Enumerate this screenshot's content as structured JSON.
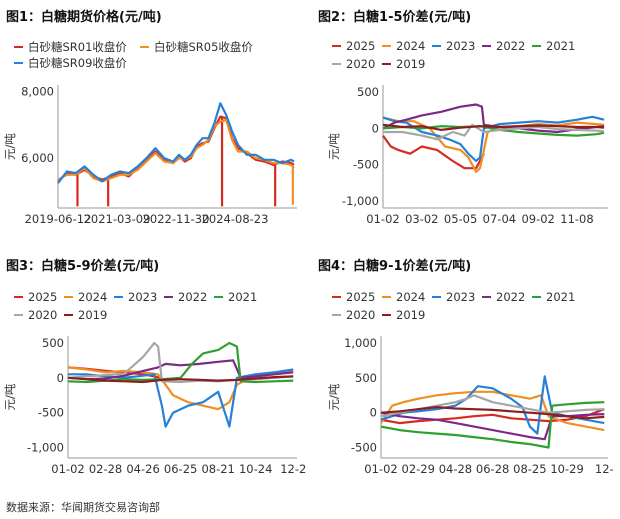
{
  "source": "数据来源：华闻期货交易咨询部",
  "chart_data": [
    {
      "id": "fig1",
      "type": "line",
      "title": "图1：白糖期货价格(元/吨)",
      "ylabel": "元/吨",
      "ylim": [
        4500,
        8200
      ],
      "yticks": [
        6000,
        8000
      ],
      "ytick_labels": [
        "6,000",
        "8,000"
      ],
      "xticks": [
        0,
        1,
        2,
        3,
        4
      ],
      "xtick_labels": [
        "2019-06-12",
        "2021-03-09",
        "2022-11-30",
        "2024-08-23",
        ""
      ],
      "xlim": [
        0,
        4.05
      ],
      "series": [
        {
          "name": "白砂糖SR01收盘价",
          "color": "#d52b1e",
          "x": [
            0,
            0.15,
            0.3,
            0.45,
            0.6,
            0.75,
            0.9,
            1.05,
            1.2,
            1.35,
            1.5,
            1.65,
            1.8,
            1.95,
            2.05,
            2.15,
            2.25,
            2.35,
            2.45,
            2.55,
            2.65,
            2.75,
            2.85,
            2.95,
            3.05,
            3.2,
            3.35,
            3.5,
            3.65,
            3.8,
            3.95,
            4.0
          ],
          "y": [
            5300,
            5550,
            5500,
            5650,
            5450,
            5350,
            5450,
            5550,
            5450,
            5700,
            5950,
            6200,
            5950,
            5850,
            6050,
            5900,
            6000,
            6350,
            6450,
            6500,
            6900,
            7250,
            7200,
            6600,
            6300,
            6150,
            5950,
            5900,
            5800,
            5900,
            5850,
            5800
          ],
          "spikes": [
            [
              0.33,
              4550
            ],
            [
              0.85,
              4550
            ],
            [
              2.78,
              4550
            ],
            [
              3.68,
              4550
            ]
          ]
        },
        {
          "name": "白砂糖SR05收盘价",
          "color": "#f28e1f",
          "x": [
            0,
            0.15,
            0.3,
            0.45,
            0.6,
            0.75,
            0.9,
            1.05,
            1.2,
            1.35,
            1.5,
            1.65,
            1.8,
            1.95,
            2.05,
            2.15,
            2.25,
            2.35,
            2.45,
            2.55,
            2.65,
            2.75,
            2.85,
            2.95,
            3.05,
            3.2,
            3.35,
            3.5,
            3.65,
            3.8,
            3.95,
            4.0
          ],
          "y": [
            5350,
            5500,
            5500,
            5700,
            5400,
            5300,
            5400,
            5500,
            5500,
            5650,
            5900,
            6150,
            5900,
            5850,
            6000,
            5950,
            6050,
            6300,
            6400,
            6550,
            6950,
            7100,
            7150,
            6550,
            6200,
            6200,
            6000,
            5950,
            5850,
            5850,
            5800,
            5700
          ],
          "spikes": [
            [
              3.98,
              4600
            ]
          ]
        },
        {
          "name": "白砂糖SR09收盘价",
          "color": "#2680d9",
          "x": [
            0,
            0.15,
            0.3,
            0.45,
            0.6,
            0.75,
            0.9,
            1.05,
            1.2,
            1.35,
            1.5,
            1.65,
            1.8,
            1.95,
            2.05,
            2.15,
            2.25,
            2.35,
            2.45,
            2.55,
            2.65,
            2.75,
            2.85,
            2.95,
            3.05,
            3.2,
            3.35,
            3.5,
            3.65,
            3.8,
            3.95,
            4.0
          ],
          "y": [
            5250,
            5600,
            5550,
            5750,
            5500,
            5300,
            5500,
            5600,
            5550,
            5750,
            6000,
            6300,
            6000,
            5900,
            6100,
            5950,
            6100,
            6400,
            6600,
            6600,
            7050,
            7650,
            7300,
            6800,
            6400,
            6100,
            6100,
            5950,
            5950,
            5850,
            5950,
            5900
          ],
          "spikes": []
        }
      ]
    },
    {
      "id": "fig2",
      "type": "line",
      "title": "图2：白糖1-5价差(元/吨)",
      "ylabel": "元/吨",
      "ylim": [
        -1100,
        600
      ],
      "yticks": [
        -1000,
        -500,
        0,
        500
      ],
      "ytick_labels": [
        "-1,000",
        "-500",
        "0",
        "500"
      ],
      "xticks": [
        0,
        1,
        2,
        3,
        4,
        5
      ],
      "xtick_labels": [
        "01-02",
        "03-02",
        "05-05",
        "07-04",
        "09-02",
        "11-08"
      ],
      "xlim": [
        0,
        5.8
      ],
      "series": [
        {
          "name": "2025",
          "color": "#d52b1e",
          "x": [
            0,
            0.2,
            0.4,
            0.7,
            1.0,
            1.4,
            1.8,
            2.1,
            2.4,
            2.6
          ],
          "y": [
            -100,
            -250,
            -300,
            -350,
            -250,
            -300,
            -450,
            -550,
            -550,
            -350
          ]
        },
        {
          "name": "2024",
          "color": "#f28e1f",
          "x": [
            0,
            0.4,
            0.8,
            1.2,
            1.6,
            2.0,
            2.2,
            2.4,
            2.5,
            2.7,
            3.0,
            3.5,
            4.0,
            4.5,
            5.0,
            5.5,
            5.7
          ],
          "y": [
            150,
            100,
            100,
            0,
            -250,
            -300,
            -400,
            -600,
            -550,
            -50,
            20,
            30,
            60,
            40,
            80,
            60,
            50
          ]
        },
        {
          "name": "2023",
          "color": "#2680d9",
          "x": [
            0,
            0.3,
            0.6,
            1.0,
            1.4,
            1.7,
            2.0,
            2.2,
            2.4,
            2.5,
            2.6,
            3.0,
            3.5,
            4.0,
            4.5,
            5.0,
            5.4,
            5.7
          ],
          "y": [
            150,
            100,
            80,
            -50,
            -100,
            -150,
            -220,
            -350,
            -450,
            -400,
            0,
            60,
            80,
            100,
            80,
            120,
            160,
            120
          ]
        },
        {
          "name": "2022",
          "color": "#7b2a86",
          "x": [
            0,
            0.3,
            0.6,
            1.0,
            1.5,
            2.0,
            2.4,
            2.55,
            2.6,
            3.0,
            3.5,
            4.0,
            4.5,
            5.0,
            5.5,
            5.7
          ],
          "y": [
            0,
            80,
            120,
            180,
            230,
            300,
            330,
            300,
            50,
            20,
            0,
            -30,
            -50,
            -10,
            20,
            30
          ]
        },
        {
          "name": "2021",
          "color": "#2ea02e",
          "x": [
            0,
            0.5,
            1.0,
            1.5,
            2.0,
            2.5,
            3.0,
            3.5,
            4.0,
            4.5,
            5.0,
            5.5,
            5.7
          ],
          "y": [
            0,
            20,
            0,
            30,
            20,
            30,
            -20,
            -50,
            -70,
            -90,
            -100,
            -80,
            -60
          ]
        },
        {
          "name": "2020",
          "color": "#a6a6a6",
          "x": [
            0,
            0.5,
            1.0,
            1.4,
            1.8,
            2.1,
            2.3,
            2.6,
            3.0,
            3.5,
            4.0,
            4.5,
            5.0,
            5.5,
            5.7
          ],
          "y": [
            -50,
            -50,
            -100,
            -150,
            -50,
            -100,
            50,
            -50,
            -20,
            0,
            20,
            -10,
            -20,
            -30,
            -40
          ]
        },
        {
          "name": "2019",
          "color": "#8b1f1f",
          "x": [
            0,
            0.5,
            1.0,
            1.5,
            2.0,
            2.5,
            3.0,
            3.5,
            4.0,
            4.5,
            5.0,
            5.5,
            5.7
          ],
          "y": [
            50,
            20,
            30,
            -20,
            10,
            30,
            20,
            30,
            40,
            30,
            20,
            20,
            10
          ]
        }
      ]
    },
    {
      "id": "fig3",
      "type": "line",
      "title": "图3：白糖5-9价差(元/吨)",
      "ylabel": "元/吨",
      "ylim": [
        -1150,
        600
      ],
      "yticks": [
        -1000,
        -500,
        0,
        500
      ],
      "ytick_labels": [
        "-1,000",
        "-500",
        "0",
        "500"
      ],
      "xticks": [
        0,
        1,
        2,
        3,
        4,
        5,
        6
      ],
      "xtick_labels": [
        "01-02",
        "02-28",
        "04-26",
        "06-25",
        "08-21",
        "10-24",
        "12-2"
      ],
      "xlim": [
        0,
        6.1
      ],
      "series": [
        {
          "name": "2025",
          "color": "#d52b1e",
          "x": [
            0,
            0.5,
            1.0,
            1.5,
            2.0,
            2.3,
            2.5
          ],
          "y": [
            150,
            130,
            100,
            80,
            50,
            20,
            0
          ]
        },
        {
          "name": "2024",
          "color": "#f28e1f",
          "x": [
            0,
            0.5,
            1.0,
            1.5,
            2.0,
            2.4,
            2.6,
            2.8,
            3.2,
            3.6,
            4.0,
            4.3,
            4.5,
            5.0,
            5.5,
            6.0
          ],
          "y": [
            150,
            120,
            80,
            100,
            80,
            50,
            -100,
            -250,
            -350,
            -400,
            -450,
            -350,
            -100,
            50,
            80,
            100
          ]
        },
        {
          "name": "2023",
          "color": "#2680d9",
          "x": [
            0,
            0.5,
            1.0,
            1.5,
            2.0,
            2.3,
            2.5,
            2.6,
            2.8,
            3.2,
            3.6,
            4.0,
            4.3,
            4.5,
            5.0,
            5.5,
            6.0
          ],
          "y": [
            50,
            50,
            20,
            0,
            30,
            50,
            -400,
            -700,
            -500,
            -400,
            -350,
            -200,
            -700,
            0,
            50,
            80,
            120
          ]
        },
        {
          "name": "2022",
          "color": "#7b2a86",
          "x": [
            0,
            0.5,
            1.0,
            1.5,
            2.0,
            2.4,
            2.6,
            3.0,
            3.5,
            4.0,
            4.4,
            4.6,
            5.0,
            5.5,
            6.0
          ],
          "y": [
            0,
            -20,
            -10,
            30,
            100,
            150,
            200,
            180,
            200,
            230,
            250,
            0,
            20,
            50,
            80
          ]
        },
        {
          "name": "2021",
          "color": "#2ea02e",
          "x": [
            0,
            0.5,
            1.0,
            1.5,
            2.0,
            2.5,
            3.0,
            3.3,
            3.6,
            4.0,
            4.3,
            4.5,
            4.6,
            5.0,
            5.5,
            6.0
          ],
          "y": [
            -50,
            -60,
            -40,
            -20,
            -30,
            -20,
            0,
            200,
            350,
            400,
            500,
            450,
            -50,
            -60,
            -50,
            -40
          ]
        },
        {
          "name": "2020",
          "color": "#a6a6a6",
          "x": [
            0,
            0.5,
            1.0,
            1.5,
            2.0,
            2.3,
            2.4,
            2.5,
            3.0,
            3.5,
            4.0,
            4.5,
            5.0,
            5.5,
            6.0
          ],
          "y": [
            0,
            20,
            40,
            60,
            300,
            500,
            450,
            -50,
            -60,
            -40,
            -50,
            -30,
            -20,
            0,
            20
          ]
        },
        {
          "name": "2019",
          "color": "#8b1f1f",
          "x": [
            0,
            0.5,
            1.0,
            1.5,
            2.0,
            2.5,
            3.0,
            3.5,
            4.0,
            4.5,
            5.0,
            5.5,
            6.0
          ],
          "y": [
            0,
            -20,
            -40,
            -50,
            -60,
            -30,
            -20,
            -30,
            -40,
            -30,
            -10,
            10,
            20
          ]
        }
      ]
    },
    {
      "id": "fig4",
      "type": "line",
      "title": "图4：白糖9-1价差(元/吨)",
      "ylabel": "元/吨",
      "ylim": [
        -650,
        1100
      ],
      "yticks": [
        -500,
        0,
        500,
        1000
      ],
      "ytick_labels": [
        "-500",
        "0",
        "500",
        "1,000"
      ],
      "xticks": [
        0,
        1,
        2,
        3,
        4,
        5,
        6
      ],
      "xtick_labels": [
        "01-02",
        "02-29",
        "04-28",
        "06-28",
        "08-25",
        "10-29",
        "12-"
      ],
      "xlim": [
        0,
        6.1
      ],
      "series": [
        {
          "name": "2025",
          "color": "#d52b1e",
          "x": [
            0,
            0.5,
            1.0,
            1.5,
            2.0,
            2.5,
            3.0,
            3.5,
            4.0,
            4.5,
            5.0,
            5.5,
            6.0
          ],
          "y": [
            -100,
            -150,
            -120,
            -100,
            -80,
            -50,
            -30,
            -80,
            -100,
            -120,
            -100,
            -50,
            50
          ]
        },
        {
          "name": "2024",
          "color": "#f28e1f",
          "x": [
            0,
            0.3,
            0.6,
            1.0,
            1.5,
            2.0,
            2.5,
            3.0,
            3.5,
            4.0,
            4.3,
            4.5,
            5.0,
            5.5,
            6.0
          ],
          "y": [
            -150,
            100,
            150,
            200,
            250,
            280,
            300,
            300,
            250,
            200,
            250,
            -50,
            -150,
            -200,
            -250
          ]
        },
        {
          "name": "2023",
          "color": "#2680d9",
          "x": [
            0,
            0.3,
            0.6,
            1.0,
            1.5,
            2.0,
            2.3,
            2.6,
            3.0,
            3.5,
            3.8,
            4.0,
            4.2,
            4.4,
            4.6,
            5.0,
            5.5,
            6.0
          ],
          "y": [
            -100,
            -50,
            0,
            20,
            50,
            100,
            200,
            380,
            350,
            200,
            80,
            -200,
            -300,
            520,
            0,
            -50,
            -100,
            -150
          ]
        },
        {
          "name": "2022",
          "color": "#7b2a86",
          "x": [
            0,
            0.5,
            1.0,
            1.5,
            2.0,
            2.5,
            3.0,
            3.5,
            4.0,
            4.4,
            4.6,
            5.0,
            5.5,
            6.0
          ],
          "y": [
            0,
            -50,
            -80,
            -100,
            -150,
            -200,
            -250,
            -300,
            -350,
            -380,
            -50,
            -50,
            -30,
            -20
          ]
        },
        {
          "name": "2021",
          "color": "#2ea02e",
          "x": [
            0,
            0.5,
            1.0,
            1.5,
            2.0,
            2.5,
            3.0,
            3.5,
            4.0,
            4.5,
            4.6,
            5.0,
            5.5,
            6.0
          ],
          "y": [
            -200,
            -250,
            -280,
            -300,
            -320,
            -350,
            -380,
            -420,
            -450,
            -500,
            100,
            120,
            140,
            150
          ]
        },
        {
          "name": "2020",
          "color": "#a6a6a6",
          "x": [
            0,
            0.5,
            1.0,
            1.5,
            2.0,
            2.3,
            2.5,
            3.0,
            3.5,
            4.0,
            4.5,
            5.0,
            5.5,
            6.0
          ],
          "y": [
            -50,
            0,
            50,
            100,
            150,
            200,
            250,
            150,
            100,
            50,
            0,
            20,
            40,
            50
          ]
        },
        {
          "name": "2019",
          "color": "#8b1f1f",
          "x": [
            0,
            0.5,
            1.0,
            1.5,
            2.0,
            2.5,
            3.0,
            3.5,
            4.0,
            4.5,
            5.0,
            5.5,
            6.0
          ],
          "y": [
            0,
            20,
            50,
            80,
            60,
            50,
            40,
            20,
            0,
            -20,
            -50,
            -80,
            -60
          ]
        }
      ]
    }
  ]
}
